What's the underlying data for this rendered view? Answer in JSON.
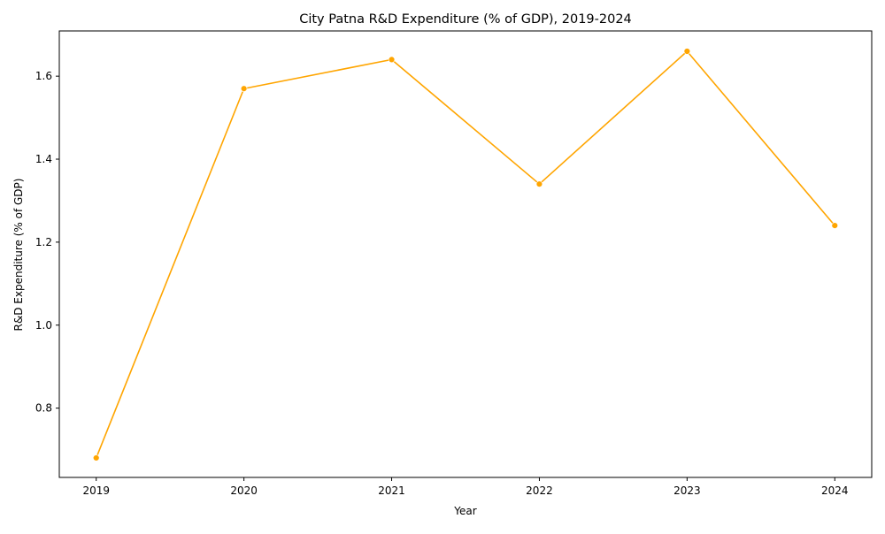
{
  "chart_data": {
    "type": "line",
    "title": "City Patna R&D Expenditure (% of GDP), 2019-2024",
    "xlabel": "Year",
    "ylabel": "R&D Expenditure (% of GDP)",
    "x": [
      "2019",
      "2020",
      "2021",
      "2022",
      "2023",
      "2024"
    ],
    "series": [
      {
        "values": [
          0.68,
          1.57,
          1.64,
          1.34,
          1.66,
          1.24
        ]
      }
    ],
    "xlim": [
      2018.75,
      2024.25
    ],
    "ylim": [
      0.633,
      1.709
    ],
    "y_ticks": [
      "0.8",
      "1.0",
      "1.2",
      "1.4",
      "1.6"
    ],
    "grid": false,
    "legend": "none",
    "line_color": "#FFA500"
  }
}
